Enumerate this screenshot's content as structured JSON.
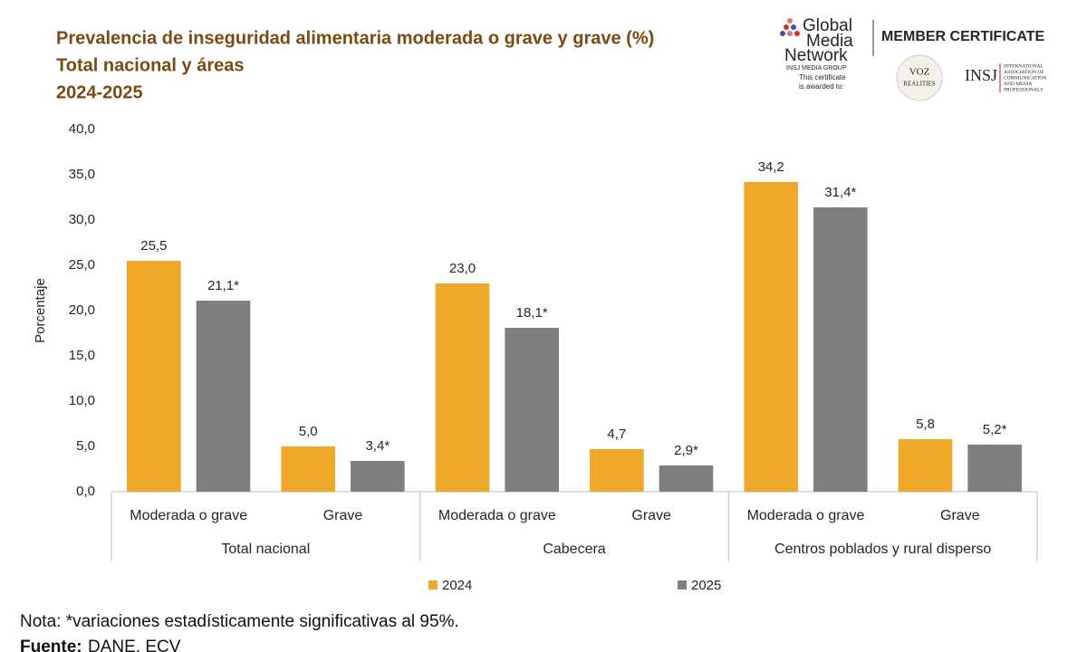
{
  "chart_data": {
    "type": "grouped_bar",
    "title_lines": [
      "Prevalencia de inseguridad alimentaria moderada o grave y grave (%)",
      "Total nacional y áreas",
      "2024-2025"
    ],
    "y_label": "Porcentaje",
    "categories": [
      "Moderada o grave",
      "Grave",
      "Moderada o grave",
      "Grave",
      "Moderada o grave",
      "Grave"
    ],
    "groups": [
      "Total nacional",
      "Cabecera",
      "Centros poblados y rural disperso"
    ],
    "series": [
      {
        "name": "2024",
        "color": "#eea82a",
        "values": [
          25.5,
          5.0,
          23.0,
          4.7,
          34.2,
          5.8
        ],
        "value_labels": [
          "25,5",
          "5,0",
          "23,0",
          "4,7",
          "34,2",
          "5,8"
        ]
      },
      {
        "name": "2025",
        "color": "#7f7f7f",
        "values": [
          21.1,
          3.4,
          18.1,
          2.9,
          31.4,
          5.2
        ],
        "value_labels": [
          "21,1*",
          "3,4*",
          "18,1*",
          "2,9*",
          "31,4*",
          "5,2*"
        ]
      }
    ],
    "ylim": [
      0,
      40
    ],
    "yticks": [
      {
        "value": 0,
        "label": "0,0"
      },
      {
        "value": 5,
        "label": "5,0"
      },
      {
        "value": 10,
        "label": "10,0"
      },
      {
        "value": 15,
        "label": "15,0"
      },
      {
        "value": 20,
        "label": "20,0"
      },
      {
        "value": 25,
        "label": "25,0"
      },
      {
        "value": 30,
        "label": "30,0"
      },
      {
        "value": 35,
        "label": "35,0"
      },
      {
        "value": 40,
        "label": "40,0"
      }
    ],
    "grid": false,
    "legend": "bottom",
    "note": "Nota: *variaciones estadísticamente significativas al 95%.",
    "source_label": "Fuente:",
    "source": "DANE, ECV"
  },
  "branding": {
    "logo_line1": "Global",
    "logo_line2": "Media",
    "logo_line3": "Network",
    "logo_group": "INSJ MEDIA GROUP",
    "awarded_1": "This certificate",
    "awarded_2": "is awarded to:",
    "certificate": "MEMBER CERTIFICATE",
    "badge_1": "VOZ",
    "badge_2": "REALITIES",
    "insj": "INSJ",
    "insj_desc": [
      "INTERNATIONAL",
      "ASSOCIATION OF",
      "COMMUNICATION",
      "AND MEDIA",
      "PROFESSIONALS"
    ]
  }
}
